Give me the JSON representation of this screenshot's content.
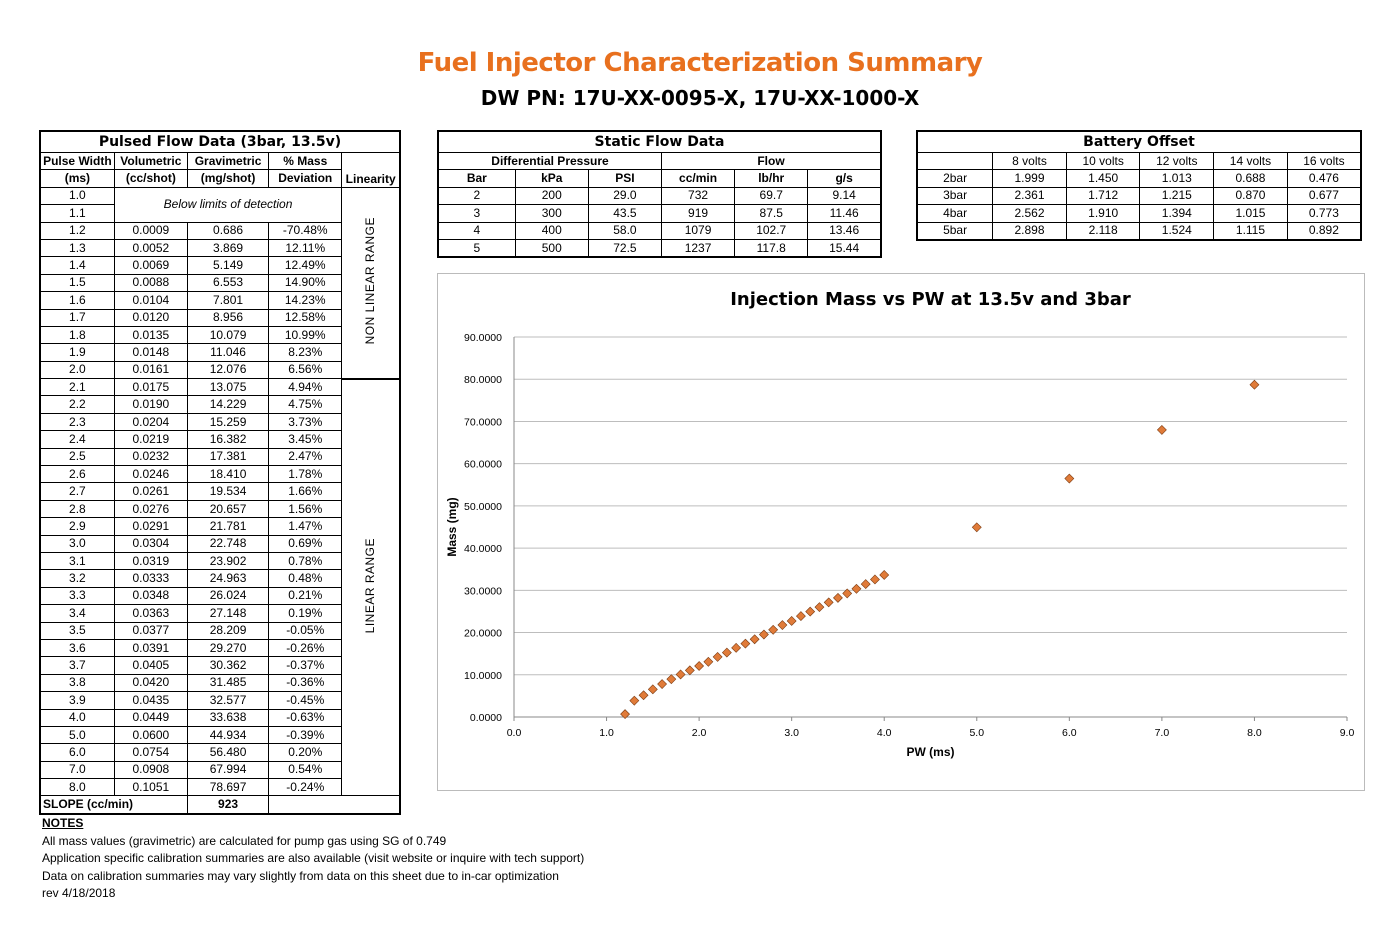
{
  "header": {
    "title": "Fuel Injector Characterization Summary",
    "subtitle": "DW PN: 17U-XX-0095-X, 17U-XX-1000-X",
    "title_color": "#e8701e"
  },
  "pulsed": {
    "caption": "Pulsed Flow Data (3bar, 13.5v)",
    "headers": [
      [
        "Pulse Width",
        "(ms)"
      ],
      [
        "Volumetric",
        "(cc/shot)"
      ],
      [
        "Gravimetric",
        "(mg/shot)"
      ],
      [
        "% Mass",
        "Deviation"
      ],
      [
        "",
        "Linearity"
      ]
    ],
    "below_limits": "Below limits of detection",
    "nonlinear_label": "NON LINEAR RANGE",
    "linear_label": "LINEAR RANGE",
    "rows": [
      [
        "1.0",
        "",
        "",
        ""
      ],
      [
        "1.1",
        "",
        "",
        ""
      ],
      [
        "1.2",
        "0.0009",
        "0.686",
        "-70.48%"
      ],
      [
        "1.3",
        "0.0052",
        "3.869",
        "12.11%"
      ],
      [
        "1.4",
        "0.0069",
        "5.149",
        "12.49%"
      ],
      [
        "1.5",
        "0.0088",
        "6.553",
        "14.90%"
      ],
      [
        "1.6",
        "0.0104",
        "7.801",
        "14.23%"
      ],
      [
        "1.7",
        "0.0120",
        "8.956",
        "12.58%"
      ],
      [
        "1.8",
        "0.0135",
        "10.079",
        "10.99%"
      ],
      [
        "1.9",
        "0.0148",
        "11.046",
        "8.23%"
      ],
      [
        "2.0",
        "0.0161",
        "12.076",
        "6.56%"
      ],
      [
        "2.1",
        "0.0175",
        "13.075",
        "4.94%"
      ],
      [
        "2.2",
        "0.0190",
        "14.229",
        "4.75%"
      ],
      [
        "2.3",
        "0.0204",
        "15.259",
        "3.73%"
      ],
      [
        "2.4",
        "0.0219",
        "16.382",
        "3.45%"
      ],
      [
        "2.5",
        "0.0232",
        "17.381",
        "2.47%"
      ],
      [
        "2.6",
        "0.0246",
        "18.410",
        "1.78%"
      ],
      [
        "2.7",
        "0.0261",
        "19.534",
        "1.66%"
      ],
      [
        "2.8",
        "0.0276",
        "20.657",
        "1.56%"
      ],
      [
        "2.9",
        "0.0291",
        "21.781",
        "1.47%"
      ],
      [
        "3.0",
        "0.0304",
        "22.748",
        "0.69%"
      ],
      [
        "3.1",
        "0.0319",
        "23.902",
        "0.78%"
      ],
      [
        "3.2",
        "0.0333",
        "24.963",
        "0.48%"
      ],
      [
        "3.3",
        "0.0348",
        "26.024",
        "0.21%"
      ],
      [
        "3.4",
        "0.0363",
        "27.148",
        "0.19%"
      ],
      [
        "3.5",
        "0.0377",
        "28.209",
        "-0.05%"
      ],
      [
        "3.6",
        "0.0391",
        "29.270",
        "-0.26%"
      ],
      [
        "3.7",
        "0.0405",
        "30.362",
        "-0.37%"
      ],
      [
        "3.8",
        "0.0420",
        "31.485",
        "-0.36%"
      ],
      [
        "3.9",
        "0.0435",
        "32.577",
        "-0.45%"
      ],
      [
        "4.0",
        "0.0449",
        "33.638",
        "-0.63%"
      ],
      [
        "5.0",
        "0.0600",
        "44.934",
        "-0.39%"
      ],
      [
        "6.0",
        "0.0754",
        "56.480",
        "0.20%"
      ],
      [
        "7.0",
        "0.0908",
        "67.994",
        "0.54%"
      ],
      [
        "8.0",
        "0.1051",
        "78.697",
        "-0.24%"
      ]
    ],
    "slope_label": "SLOPE (cc/min)",
    "slope_value": "923"
  },
  "static": {
    "caption": "Static Flow Data",
    "group_headers": [
      "Differential Pressure",
      "Flow"
    ],
    "headers": [
      "Bar",
      "kPa",
      "PSI",
      "cc/min",
      "lb/hr",
      "g/s"
    ],
    "rows": [
      [
        "2",
        "200",
        "29.0",
        "732",
        "69.7",
        "9.14"
      ],
      [
        "3",
        "300",
        "43.5",
        "919",
        "87.5",
        "11.46"
      ],
      [
        "4",
        "400",
        "58.0",
        "1079",
        "102.7",
        "13.46"
      ],
      [
        "5",
        "500",
        "72.5",
        "1237",
        "117.8",
        "15.44"
      ]
    ]
  },
  "battery": {
    "caption": "Battery Offset",
    "headers": [
      "",
      "8 volts",
      "10 volts",
      "12 volts",
      "14 volts",
      "16 volts"
    ],
    "rows": [
      [
        "2bar",
        "1.999",
        "1.450",
        "1.013",
        "0.688",
        "0.476"
      ],
      [
        "3bar",
        "2.361",
        "1.712",
        "1.215",
        "0.870",
        "0.677"
      ],
      [
        "4bar",
        "2.562",
        "1.910",
        "1.394",
        "1.015",
        "0.773"
      ],
      [
        "5bar",
        "2.898",
        "2.118",
        "1.524",
        "1.115",
        "0.892"
      ]
    ]
  },
  "chart_data": {
    "type": "scatter",
    "title": "Injection Mass vs PW at 13.5v and 3bar",
    "xlabel": "PW (ms)",
    "ylabel": "Mass (mg)",
    "xlim": [
      0,
      9
    ],
    "ylim": [
      0,
      90
    ],
    "x_ticks": [
      "0.0",
      "1.0",
      "2.0",
      "3.0",
      "4.0",
      "5.0",
      "6.0",
      "7.0",
      "8.0",
      "9.0"
    ],
    "y_ticks": [
      "0.0000",
      "10.0000",
      "20.0000",
      "30.0000",
      "40.0000",
      "50.0000",
      "60.0000",
      "70.0000",
      "80.0000",
      "90.0000"
    ],
    "grid": "horizontal",
    "marker_color": "#e07b39",
    "marker_edge": "#7a3b12",
    "series": [
      {
        "x": [
          1.2,
          1.3,
          1.4,
          1.5,
          1.6,
          1.7,
          1.8,
          1.9,
          2.0,
          2.1,
          2.2,
          2.3,
          2.4,
          2.5,
          2.6,
          2.7,
          2.8,
          2.9,
          3.0,
          3.1,
          3.2,
          3.3,
          3.4,
          3.5,
          3.6,
          3.7,
          3.8,
          3.9,
          4.0,
          5.0,
          6.0,
          7.0,
          8.0
        ],
        "y": [
          0.686,
          3.869,
          5.149,
          6.553,
          7.801,
          8.956,
          10.079,
          11.046,
          12.076,
          13.075,
          14.229,
          15.259,
          16.382,
          17.381,
          18.41,
          19.534,
          20.657,
          21.781,
          22.748,
          23.902,
          24.963,
          26.024,
          27.148,
          28.209,
          29.27,
          30.362,
          31.485,
          32.577,
          33.638,
          44.934,
          56.48,
          67.994,
          78.697
        ]
      }
    ]
  },
  "notes": {
    "heading": "NOTES",
    "lines": [
      "All mass values (gravimetric) are calculated for pump gas using SG of 0.749",
      "Application specific calibration summaries are also available (visit website or inquire with tech support)",
      "Data on calibration summaries may vary slightly from data on this sheet due to in-car optimization",
      "rev 4/18/2018"
    ]
  }
}
